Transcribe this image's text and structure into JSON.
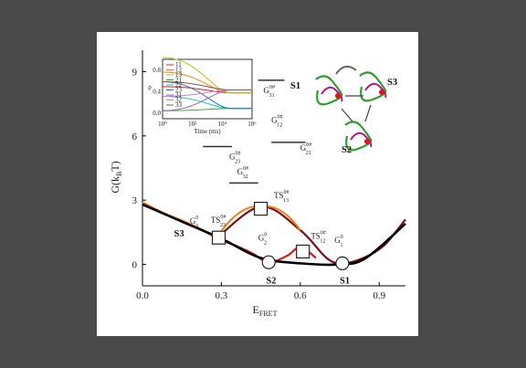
{
  "chart_data": {
    "type": "line",
    "xlabel": "E_FRET",
    "ylabel": "G(k_B T)",
    "xlim": [
      0.0,
      1.0
    ],
    "ylim": [
      -1,
      10
    ],
    "xticks": [
      "0.0",
      "0.3",
      "0.6",
      "0.9"
    ],
    "yticks": [
      "0",
      "3",
      "6",
      "9"
    ],
    "xtick_values": [
      0.0,
      0.3,
      0.6,
      0.9
    ],
    "ytick_values": [
      0,
      3,
      6,
      9
    ],
    "series": [
      {
        "name": "S3",
        "color": "#f07d1e",
        "x": [
          0.0,
          0.08,
          0.16,
          0.23,
          0.28
        ],
        "y": [
          2.9,
          2.4,
          2.0,
          1.6,
          1.2
        ]
      },
      {
        "name": "S2",
        "color": "#e1141c",
        "x": [
          0.28,
          0.35,
          0.42,
          0.48,
          0.55,
          0.6,
          0.66
        ],
        "y": [
          1.2,
          0.9,
          0.5,
          0.1,
          0.4,
          0.8,
          0.3
        ]
      },
      {
        "name": "S1",
        "color": "#7a0f14",
        "x": [
          0.28,
          0.45,
          0.6,
          0.7,
          0.76,
          0.84,
          0.92,
          1.0
        ],
        "y": [
          1.2,
          2.7,
          1.6,
          0.3,
          0.05,
          0.3,
          0.9,
          2.1
        ]
      },
      {
        "name": "",
        "color": "#000000",
        "x": [
          0.0,
          0.15,
          0.3,
          0.45,
          0.6,
          0.75,
          0.85,
          1.0
        ],
        "y": [
          2.8,
          2.0,
          1.2,
          0.3,
          0.05,
          0.0,
          0.3,
          1.9
        ]
      }
    ],
    "transitions": [
      {
        "from_x": 0.28,
        "from_y": 1.2,
        "peak_x": 0.46,
        "peak_y": 2.7,
        "to_x": 0.6,
        "to_y": 1.6,
        "color": "#f07d1e"
      }
    ],
    "minima_markers": [
      {
        "x": 0.48,
        "y": 0.1
      },
      {
        "x": 0.76,
        "y": 0.05
      }
    ],
    "ts_markers": [
      {
        "x": 0.29,
        "y": 1.25
      },
      {
        "x": 0.45,
        "y": 2.6
      },
      {
        "x": 0.61,
        "y": 0.6
      }
    ],
    "level_bars": [
      {
        "x0": 0.44,
        "x1": 0.54,
        "y": 8.6
      },
      {
        "x0": 0.49,
        "x1": 0.62,
        "y": 5.7
      },
      {
        "x0": 0.23,
        "x1": 0.34,
        "y": 5.5
      },
      {
        "x0": 0.33,
        "x1": 0.44,
        "y": 3.8
      }
    ],
    "labels": [
      {
        "text": "G",
        "sup": "0#",
        "sub": "31",
        "x": 0.46,
        "y": 8.0
      },
      {
        "text": "G",
        "sup": "0#",
        "sub": "12",
        "x": 0.49,
        "y": 6.6
      },
      {
        "text": "G",
        "sup": "0#",
        "sub": "21",
        "x": 0.6,
        "y": 5.3
      },
      {
        "text": "G",
        "sup": "0#",
        "sub": "23",
        "x": 0.33,
        "y": 4.9
      },
      {
        "text": "G",
        "sup": "0#",
        "sub": "32",
        "x": 0.36,
        "y": 4.2
      },
      {
        "text": "TS",
        "sup": "0#",
        "sub": "13",
        "x": 0.5,
        "y": 3.1
      },
      {
        "text": "TS",
        "sup": "0#",
        "sub": "23",
        "x": 0.26,
        "y": 1.95
      },
      {
        "text": "TS",
        "sup": "0#",
        "sub": "12",
        "x": 0.64,
        "y": 1.2
      },
      {
        "text": "G",
        "sup": "0",
        "sub": "3",
        "x": 0.18,
        "y": 1.9
      },
      {
        "text": "G",
        "sup": "0",
        "sub": "2",
        "x": 0.44,
        "y": 1.1
      },
      {
        "text": "G",
        "sup": "0",
        "sub": "1",
        "x": 0.73,
        "y": 1.0
      }
    ],
    "state_labels": [
      {
        "text": "S3",
        "x": 0.12,
        "y": 1.3,
        "color": "#f07d1e"
      },
      {
        "text": "S2",
        "x": 0.47,
        "y": -0.9,
        "color": "#e1141c"
      },
      {
        "text": "S1",
        "x": 0.75,
        "y": -0.9,
        "color": "#7a0f14"
      }
    ],
    "inset": {
      "type": "line",
      "xlabel": "Time (ms)",
      "ylabel": "ρ",
      "xticks": [
        "10⁰",
        "10²",
        "10⁴",
        "10⁶"
      ],
      "yticks": [
        "0.0",
        "0.4",
        "0.8"
      ],
      "legend": [
        "11",
        "12",
        "13",
        "21",
        "22",
        "23",
        "31",
        "32",
        "33"
      ],
      "series_colors": [
        "#d62728",
        "#ff7f0e",
        "#bcbd22",
        "#2ca02c",
        "#17becf",
        "#1f77b4",
        "#9467bd",
        "#e377c2",
        "#8c564b"
      ]
    },
    "diagram_labels": [
      "S1",
      "S2",
      "S3"
    ]
  }
}
